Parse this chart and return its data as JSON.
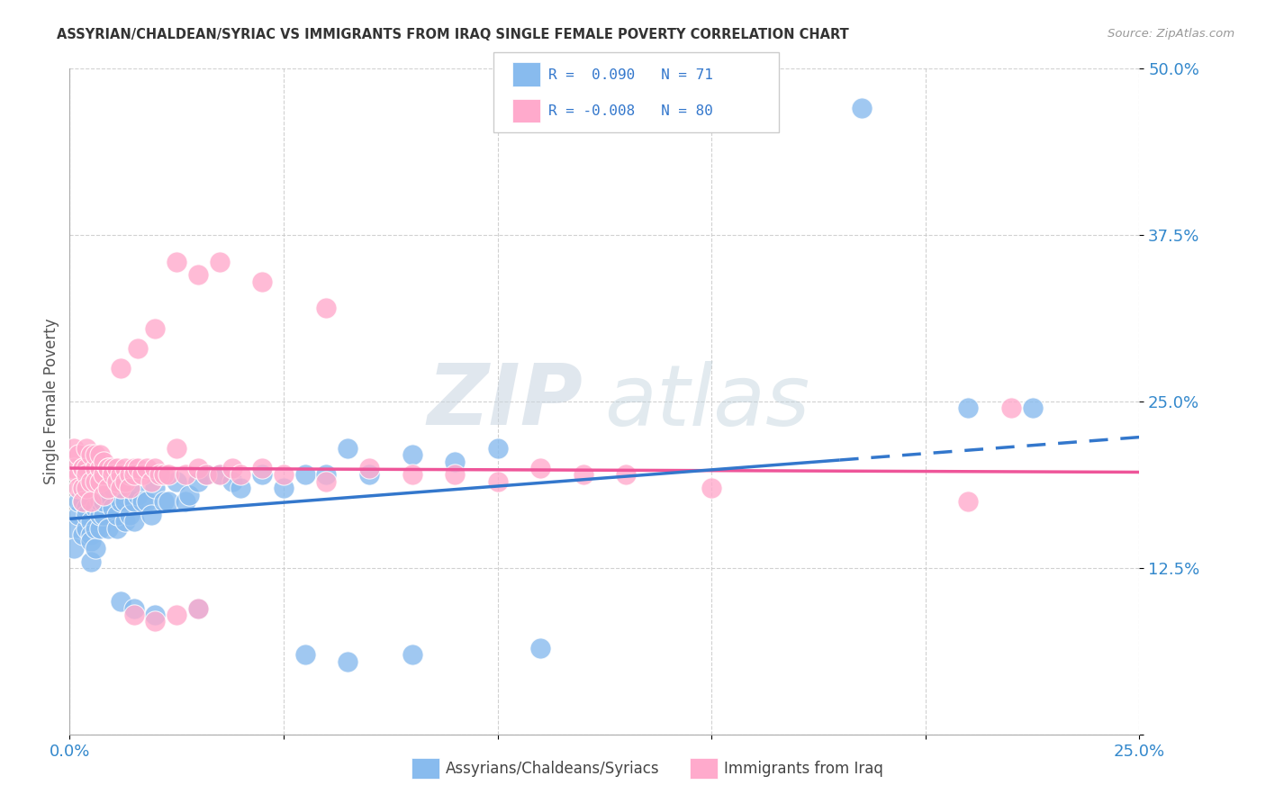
{
  "title": "ASSYRIAN/CHALDEAN/SYRIAC VS IMMIGRANTS FROM IRAQ SINGLE FEMALE POVERTY CORRELATION CHART",
  "source": "Source: ZipAtlas.com",
  "ylabel": "Single Female Poverty",
  "blue_color": "#88bbee",
  "pink_color": "#ffaacc",
  "blue_line_color": "#3377cc",
  "pink_line_color": "#ee5599",
  "watermark_color": "#d5dde8",
  "R1": 0.09,
  "N1": 71,
  "R2": -0.008,
  "N2": 80,
  "xlim": [
    0.0,
    0.25
  ],
  "ylim": [
    0.0,
    0.5
  ],
  "legend_label1": "Assyrians/Chaldeans/Syriacs",
  "legend_label2": "Immigrants from Iraq",
  "blue_intercept": 0.162,
  "blue_slope": 0.245,
  "pink_intercept": 0.2,
  "pink_slope": -0.012,
  "blue_x": [
    0.001,
    0.001,
    0.002,
    0.002,
    0.003,
    0.003,
    0.003,
    0.004,
    0.004,
    0.004,
    0.005,
    0.005,
    0.005,
    0.005,
    0.006,
    0.006,
    0.006,
    0.007,
    0.007,
    0.007,
    0.008,
    0.008,
    0.009,
    0.009,
    0.01,
    0.01,
    0.011,
    0.011,
    0.012,
    0.012,
    0.013,
    0.013,
    0.014,
    0.015,
    0.015,
    0.016,
    0.017,
    0.018,
    0.019,
    0.02,
    0.021,
    0.022,
    0.023,
    0.025,
    0.027,
    0.028,
    0.03,
    0.032,
    0.035,
    0.038,
    0.04,
    0.045,
    0.05,
    0.055,
    0.06,
    0.065,
    0.07,
    0.08,
    0.09,
    0.1,
    0.012,
    0.015,
    0.02,
    0.03,
    0.055,
    0.065,
    0.08,
    0.11,
    0.185,
    0.21,
    0.225
  ],
  "blue_y": [
    0.155,
    0.14,
    0.165,
    0.175,
    0.175,
    0.185,
    0.15,
    0.17,
    0.155,
    0.165,
    0.16,
    0.15,
    0.145,
    0.13,
    0.155,
    0.14,
    0.17,
    0.155,
    0.165,
    0.175,
    0.165,
    0.175,
    0.155,
    0.18,
    0.17,
    0.185,
    0.155,
    0.165,
    0.175,
    0.185,
    0.175,
    0.16,
    0.165,
    0.16,
    0.175,
    0.18,
    0.175,
    0.175,
    0.165,
    0.185,
    0.195,
    0.175,
    0.175,
    0.19,
    0.175,
    0.18,
    0.19,
    0.195,
    0.195,
    0.19,
    0.185,
    0.195,
    0.185,
    0.195,
    0.195,
    0.215,
    0.195,
    0.21,
    0.205,
    0.215,
    0.1,
    0.095,
    0.09,
    0.095,
    0.06,
    0.055,
    0.06,
    0.065,
    0.47,
    0.245,
    0.245
  ],
  "pink_x": [
    0.001,
    0.001,
    0.002,
    0.002,
    0.002,
    0.003,
    0.003,
    0.003,
    0.003,
    0.004,
    0.004,
    0.004,
    0.004,
    0.005,
    0.005,
    0.005,
    0.006,
    0.006,
    0.006,
    0.007,
    0.007,
    0.007,
    0.008,
    0.008,
    0.008,
    0.009,
    0.009,
    0.009,
    0.01,
    0.01,
    0.011,
    0.011,
    0.012,
    0.012,
    0.013,
    0.013,
    0.014,
    0.014,
    0.015,
    0.015,
    0.016,
    0.017,
    0.018,
    0.019,
    0.02,
    0.021,
    0.022,
    0.023,
    0.025,
    0.027,
    0.03,
    0.032,
    0.035,
    0.038,
    0.04,
    0.045,
    0.05,
    0.06,
    0.07,
    0.08,
    0.09,
    0.1,
    0.11,
    0.12,
    0.13,
    0.15,
    0.015,
    0.02,
    0.025,
    0.03,
    0.012,
    0.016,
    0.02,
    0.025,
    0.03,
    0.035,
    0.045,
    0.06,
    0.21,
    0.22
  ],
  "pink_y": [
    0.215,
    0.2,
    0.21,
    0.195,
    0.185,
    0.2,
    0.2,
    0.185,
    0.175,
    0.215,
    0.2,
    0.195,
    0.185,
    0.21,
    0.19,
    0.175,
    0.2,
    0.21,
    0.19,
    0.2,
    0.21,
    0.19,
    0.195,
    0.205,
    0.18,
    0.2,
    0.2,
    0.185,
    0.2,
    0.195,
    0.2,
    0.19,
    0.195,
    0.185,
    0.2,
    0.19,
    0.195,
    0.185,
    0.2,
    0.195,
    0.2,
    0.195,
    0.2,
    0.19,
    0.2,
    0.195,
    0.195,
    0.195,
    0.215,
    0.195,
    0.2,
    0.195,
    0.195,
    0.2,
    0.195,
    0.2,
    0.195,
    0.19,
    0.2,
    0.195,
    0.195,
    0.19,
    0.2,
    0.195,
    0.195,
    0.185,
    0.09,
    0.085,
    0.09,
    0.095,
    0.275,
    0.29,
    0.305,
    0.355,
    0.345,
    0.355,
    0.34,
    0.32,
    0.175,
    0.245
  ]
}
